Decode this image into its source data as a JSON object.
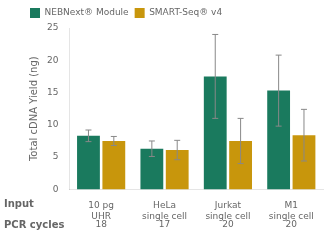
{
  "chart_data": {
    "type": "bar",
    "categories": [
      "10 pg\nUHR",
      "HeLa\nsingle cell",
      "Jurkat\nsingle cell",
      "M1\nsingle cell"
    ],
    "series": [
      {
        "name": "NEBNext® Module",
        "color": "#1a7a5e",
        "values": [
          8.3,
          6.3,
          17.5,
          15.3
        ],
        "errors": [
          0.9,
          1.2,
          6.5,
          5.5
        ]
      },
      {
        "name": "SMART-Seq® v4",
        "color": "#c8960c",
        "values": [
          7.5,
          6.1,
          7.5,
          8.4
        ],
        "errors": [
          0.7,
          1.5,
          3.5,
          4.0
        ]
      }
    ],
    "ylabel": "Total cDNA Yield (ng)",
    "ylim": [
      0,
      25
    ],
    "yticks": [
      0,
      5,
      10,
      15,
      20,
      25
    ],
    "grid": false,
    "legend": "upper left",
    "annotations": [
      {
        "text": "Input"
      },
      {
        "text": "PCR cycles",
        "labels": [
          "18",
          "17",
          "20",
          "20"
        ]
      }
    ]
  }
}
